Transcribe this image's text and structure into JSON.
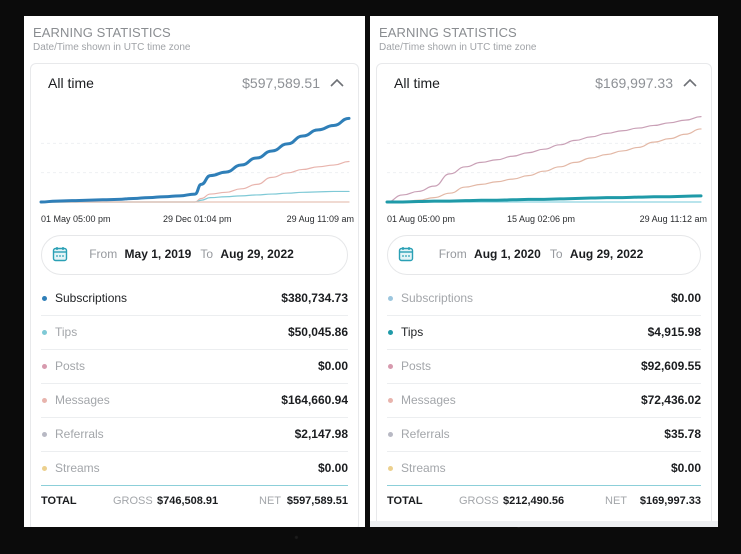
{
  "panels": [
    {
      "title": "EARNING STATISTICS",
      "subtitle": "Date/Time shown in UTC time zone",
      "period_label": "All time",
      "period_amount": "$597,589.51",
      "date_range": {
        "from_label": "From",
        "from": "May 1, 2019",
        "to_label": "To",
        "to": "Aug 29, 2022"
      },
      "categories": [
        {
          "name": "Subscriptions",
          "amount": "$380,734.73",
          "color": "#2f7fb8",
          "active": true
        },
        {
          "name": "Tips",
          "amount": "$50,045.86",
          "color": "#7fc9d6",
          "active": false
        },
        {
          "name": "Posts",
          "amount": "$0.00",
          "color": "#d79aae",
          "active": false
        },
        {
          "name": "Messages",
          "amount": "$164,660.94",
          "color": "#e8b4ad",
          "active": false
        },
        {
          "name": "Referrals",
          "amount": "$2,147.98",
          "color": "#b8b9c4",
          "active": false
        },
        {
          "name": "Streams",
          "amount": "$0.00",
          "color": "#ecd08e",
          "active": false
        }
      ],
      "total": {
        "label": "TOTAL",
        "gross_label": "GROSS",
        "gross": "$746,508.91",
        "net_label": "NET",
        "net": "$597,589.51"
      }
    },
    {
      "title": "EARNING STATISTICS",
      "subtitle": "Date/Time shown in UTC time zone",
      "period_label": "All time",
      "period_amount": "$169,997.33",
      "date_range": {
        "from_label": "From",
        "from": "Aug 1, 2020",
        "to_label": "To",
        "to": "Aug 29, 2022"
      },
      "categories": [
        {
          "name": "Subscriptions",
          "amount": "$0.00",
          "color": "#9cc6de",
          "active": false
        },
        {
          "name": "Tips",
          "amount": "$4,915.98",
          "color": "#1f9aa8",
          "active": true
        },
        {
          "name": "Posts",
          "amount": "$92,609.55",
          "color": "#d79aae",
          "active": false
        },
        {
          "name": "Messages",
          "amount": "$72,436.02",
          "color": "#e8b4ad",
          "active": false
        },
        {
          "name": "Referrals",
          "amount": "$35.78",
          "color": "#b8b9c4",
          "active": false
        },
        {
          "name": "Streams",
          "amount": "$0.00",
          "color": "#ecd08e",
          "active": false
        }
      ],
      "total": {
        "label": "TOTAL",
        "gross_label": "GROSS",
        "gross": "$212,490.56",
        "net_label": "NET",
        "net": "$169,997.33"
      }
    }
  ],
  "chart_data": [
    {
      "type": "line",
      "title": "",
      "xlabel": "",
      "ylabel": "",
      "x_tick_labels": [
        "01 May 05:00 pm",
        "29 Dec 01:04 pm",
        "29 Aug 11:09 am"
      ],
      "x": [
        0,
        5,
        10,
        15,
        20,
        25,
        30,
        35,
        40,
        45,
        50,
        52,
        55,
        60,
        65,
        70,
        75,
        80,
        85,
        90,
        95,
        100
      ],
      "ylim": [
        0,
        100
      ],
      "grid": true,
      "series": [
        {
          "name": "Subscriptions",
          "color": "#2f7fb8",
          "emphasis": true,
          "values": [
            0,
            1,
            1.5,
            2,
            2.5,
            3,
            4,
            5,
            6,
            7,
            9,
            20,
            30,
            34,
            42,
            50,
            58,
            66,
            75,
            82,
            87,
            95
          ]
        },
        {
          "name": "Messages",
          "color": "#e8b4ad",
          "emphasis": false,
          "values": [
            0,
            0,
            0,
            0,
            0,
            0,
            0,
            0,
            0,
            0,
            0,
            4,
            9,
            11,
            15,
            20,
            28,
            33,
            37,
            40,
            42,
            46
          ]
        },
        {
          "name": "Tips",
          "color": "#7fc9d6",
          "emphasis": false,
          "values": [
            0,
            0,
            0,
            0,
            0,
            0,
            0,
            0,
            0,
            0,
            0,
            2,
            5,
            6,
            7,
            8,
            9,
            10,
            11,
            11.5,
            12,
            12
          ]
        },
        {
          "name": "Posts",
          "color": "#e7c3b8",
          "emphasis": false,
          "values": [
            0,
            0,
            0,
            0,
            0,
            0,
            0,
            0,
            0,
            0,
            0,
            0,
            0,
            0,
            0,
            0,
            0,
            0,
            0,
            0,
            0,
            0
          ]
        }
      ]
    },
    {
      "type": "line",
      "title": "",
      "xlabel": "",
      "ylabel": "",
      "x_tick_labels": [
        "01 Aug 05:00 pm",
        "15 Aug 02:06 pm",
        "29 Aug 11:12 am"
      ],
      "x": [
        0,
        5,
        10,
        15,
        20,
        25,
        30,
        35,
        40,
        45,
        50,
        55,
        60,
        65,
        70,
        75,
        80,
        85,
        90,
        95,
        100
      ],
      "ylim": [
        0,
        100
      ],
      "grid": true,
      "series": [
        {
          "name": "Posts",
          "color": "#c9a0b6",
          "emphasis": false,
          "values": [
            0,
            8,
            12,
            18,
            32,
            40,
            45,
            48,
            52,
            56,
            60,
            65,
            70,
            74,
            78,
            81,
            84,
            87,
            90,
            93,
            97
          ]
        },
        {
          "name": "Messages",
          "color": "#e3b8a6",
          "emphasis": false,
          "values": [
            0,
            0,
            2,
            5,
            10,
            17,
            20,
            23,
            26,
            30,
            35,
            40,
            45,
            50,
            54,
            58,
            62,
            68,
            72,
            77,
            83
          ]
        },
        {
          "name": "Tips",
          "color": "#1f9aa8",
          "emphasis": true,
          "values": [
            0,
            0,
            0.5,
            1,
            1,
            1.5,
            2,
            2,
            2.5,
            3,
            3,
            3.5,
            4,
            4.5,
            5,
            5,
            5.5,
            6,
            6,
            6.5,
            7
          ]
        },
        {
          "name": "Subscriptions",
          "color": "#8fd4e0",
          "emphasis": false,
          "values": [
            0,
            0,
            0,
            0,
            0,
            0,
            0,
            0,
            0,
            0,
            0,
            0,
            0,
            0,
            0,
            0,
            0,
            0,
            0,
            0,
            0
          ]
        }
      ]
    }
  ]
}
